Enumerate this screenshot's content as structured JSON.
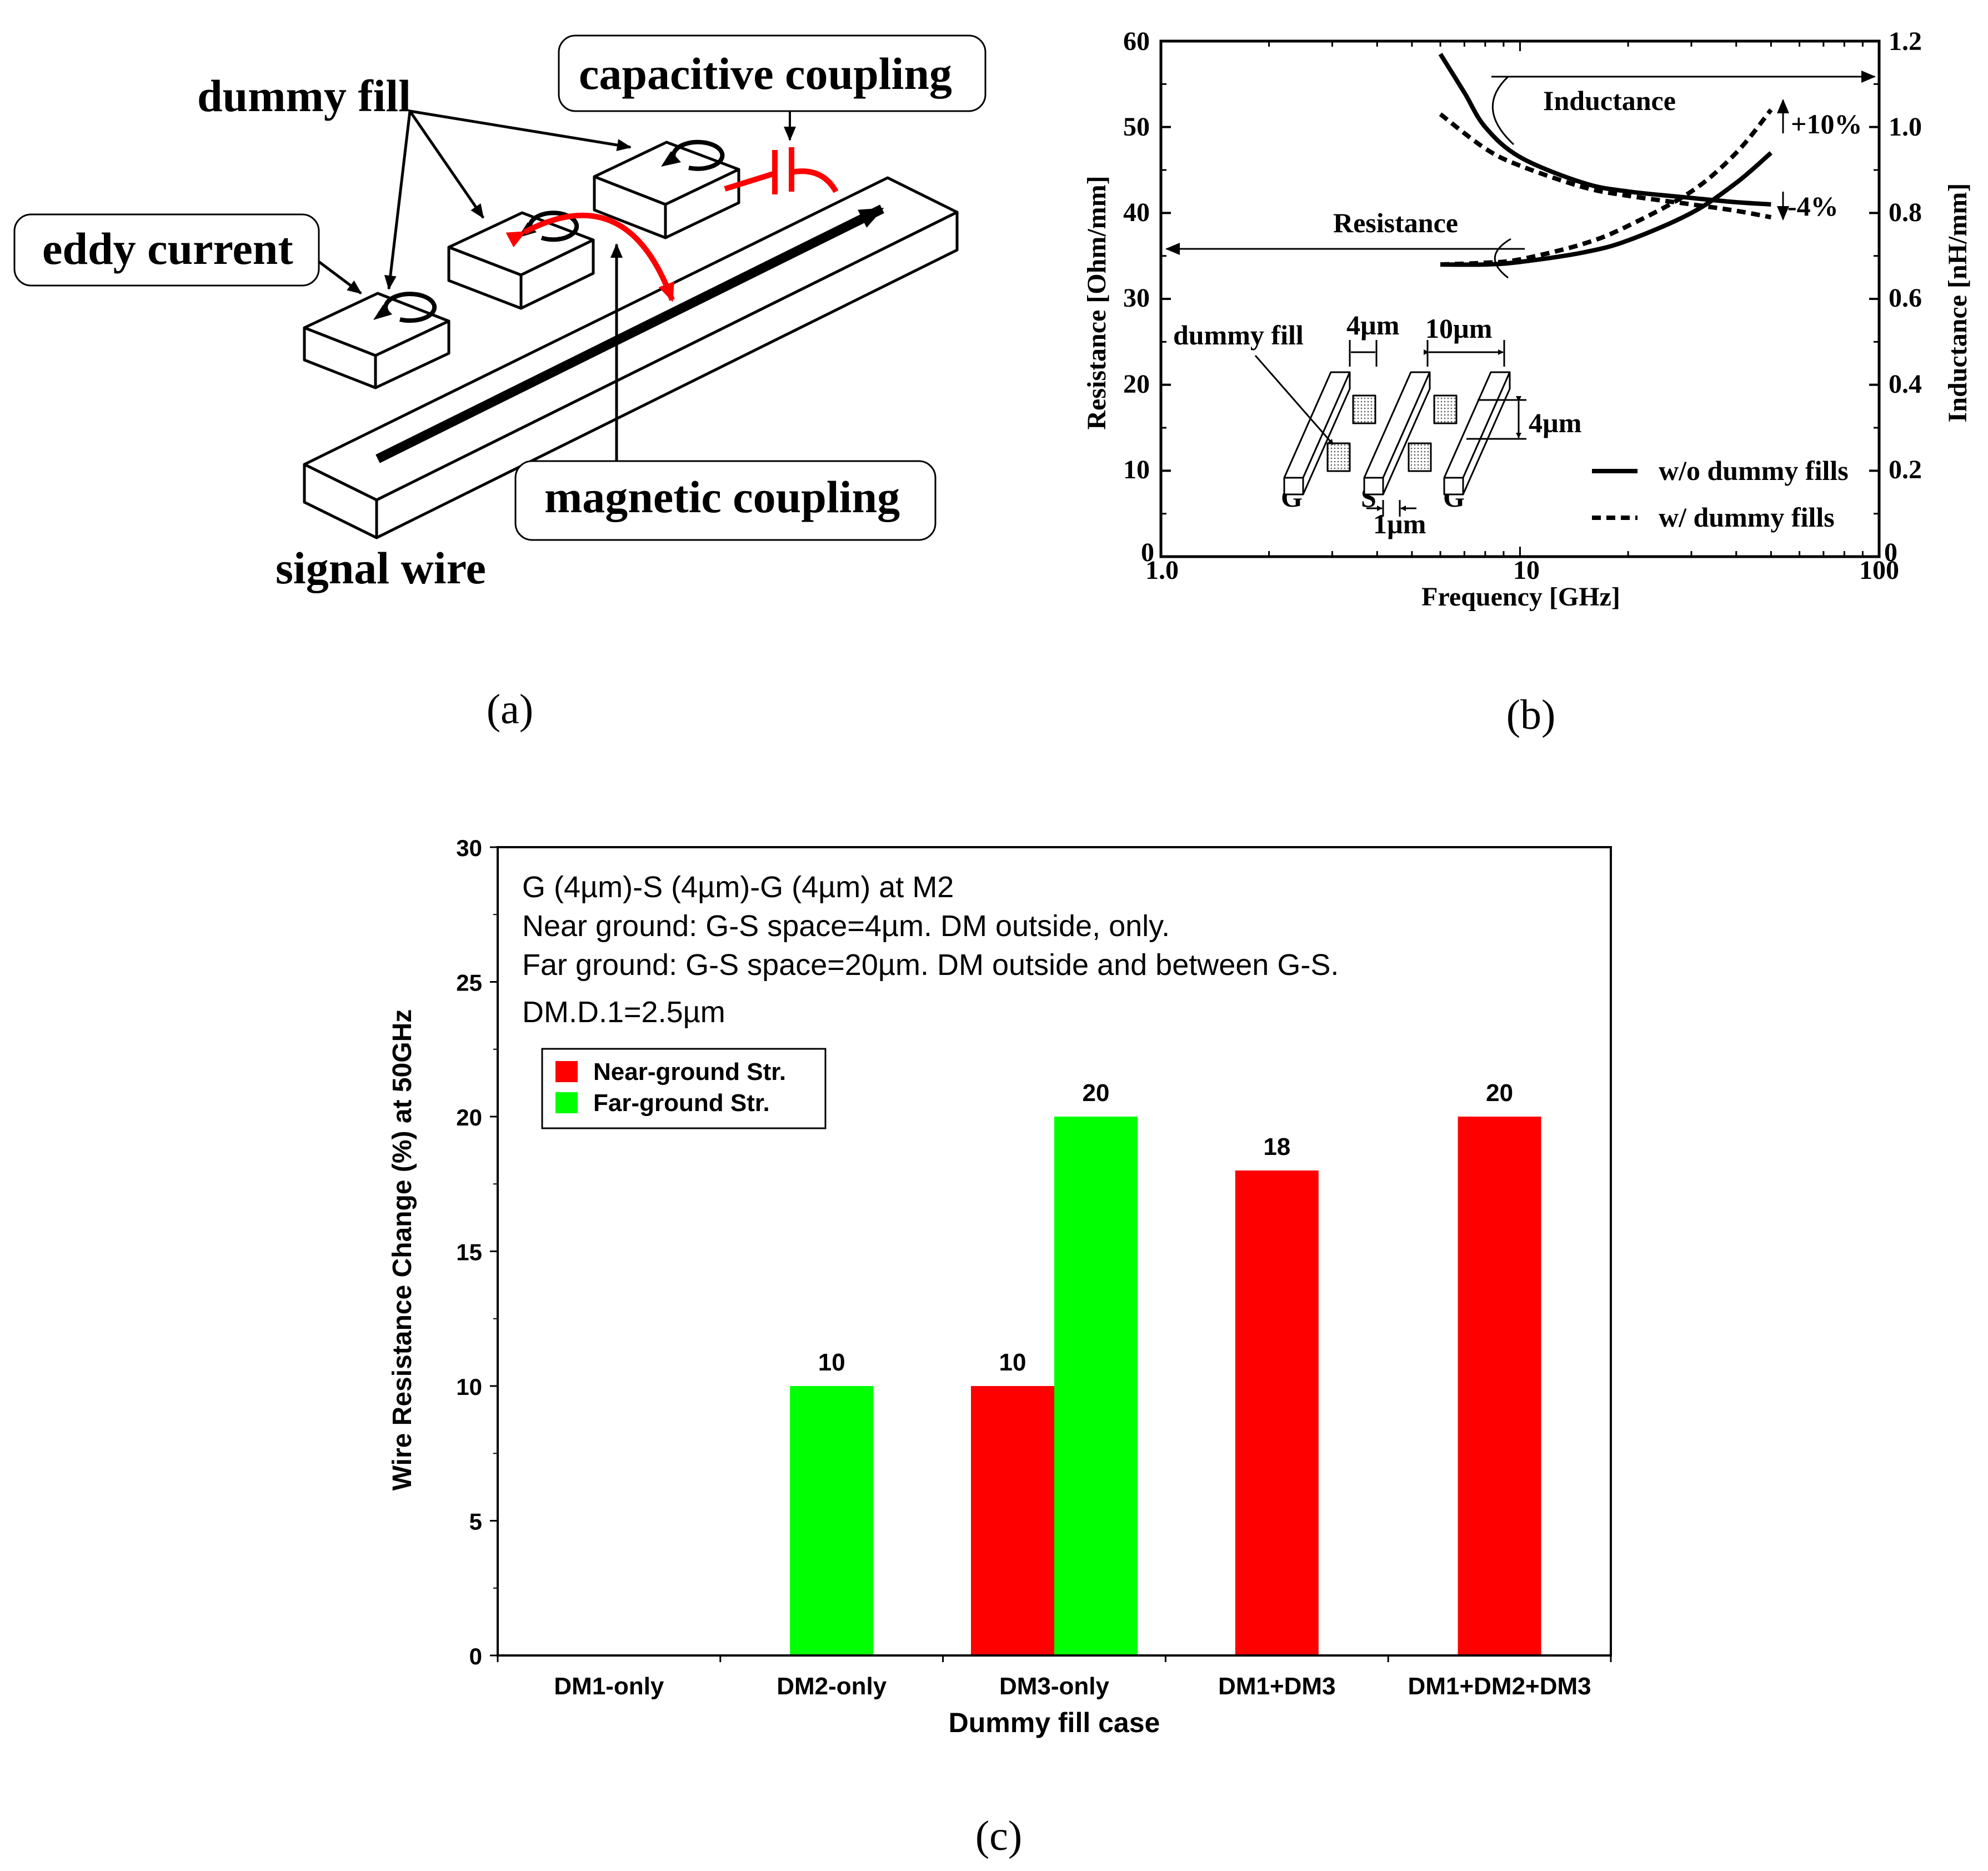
{
  "figure_a": {
    "caption": "(a)",
    "labels": {
      "dummy_fill": "dummy fill",
      "capacitive_coupling": "capacitive coupling",
      "eddy_current": "eddy current",
      "magnetic_coupling": "magnetic coupling",
      "signal_wire": "signal wire"
    }
  },
  "figure_b": {
    "caption": "(b)",
    "xlabel": "Frequency [GHz]",
    "ylabel_left": "Resistance [Ohm/mm]",
    "ylabel_right": "Inductance [nH/mm]",
    "x_ticks": [
      "1.0",
      "10",
      "100"
    ],
    "y_ticks_left": [
      "0",
      "10",
      "20",
      "30",
      "40",
      "50",
      "60"
    ],
    "y_ticks_right": [
      "0",
      "0.2",
      "0.4",
      "0.6",
      "0.8",
      "1.0",
      "1.2"
    ],
    "annotations": {
      "inductance": "Inductance",
      "resistance": "Resistance",
      "plus10": "+10%",
      "minus4": "-4%",
      "dummy_fill": "dummy fill",
      "dim_4um_a": "4µm",
      "dim_10um": "10µm",
      "dim_4um_b": "4µm",
      "dim_1um": "1µm",
      "g_left": "G",
      "s": "S",
      "g_right": "G"
    },
    "legend": [
      "w/o dummy fills",
      "w/ dummy fills"
    ]
  },
  "chart_data": [
    {
      "type": "line",
      "title": "",
      "xlabel": "Frequency [GHz]",
      "ylabel": "Resistance [Ohm/mm] / Inductance [nH/mm]",
      "x_scale": "log",
      "xlim": [
        1,
        100
      ],
      "ylim_left": [
        0,
        60
      ],
      "ylim_right": [
        0,
        1.2
      ],
      "series": [
        {
          "name": "Resistance w/o dummy fills",
          "axis": "left",
          "x": [
            6,
            8,
            10,
            15,
            20,
            30,
            40,
            50
          ],
          "y": [
            34,
            34,
            34.3,
            35.4,
            36.8,
            40,
            43.5,
            47
          ]
        },
        {
          "name": "Resistance w/ dummy fills",
          "axis": "left",
          "x": [
            6,
            8,
            10,
            15,
            20,
            30,
            40,
            50
          ],
          "y": [
            34,
            34.2,
            34.6,
            36.4,
            38.5,
            42.5,
            47,
            52
          ]
        },
        {
          "name": "Inductance w/o dummy fills",
          "axis": "right",
          "x": [
            6,
            7,
            8,
            10,
            15,
            20,
            30,
            40,
            50
          ],
          "y": [
            1.17,
            1.08,
            1.0,
            0.93,
            0.87,
            0.85,
            0.835,
            0.825,
            0.82
          ]
        },
        {
          "name": "Inductance w/ dummy fills",
          "axis": "right",
          "x": [
            6,
            8,
            10,
            15,
            20,
            30,
            40,
            50
          ],
          "y": [
            1.03,
            0.95,
            0.91,
            0.86,
            0.84,
            0.82,
            0.805,
            0.79
          ]
        }
      ]
    },
    {
      "type": "bar",
      "title": "",
      "xlabel": "Dummy fill case",
      "ylabel": "Wire Resistance Change (%) at 50GHz",
      "ylim": [
        0,
        30
      ],
      "y_ticks": [
        "0",
        "5",
        "10",
        "15",
        "20",
        "25",
        "30"
      ],
      "categories": [
        "DM1-only",
        "DM2-only",
        "DM3-only",
        "DM1+DM3",
        "DM1+DM2+DM3"
      ],
      "series": [
        {
          "name": "Near-ground Str.",
          "color": "#ff0000",
          "values": [
            null,
            null,
            10,
            18,
            20
          ]
        },
        {
          "name": "Far-ground Str.",
          "color": "#00ff00",
          "values": [
            null,
            10,
            20,
            null,
            null
          ]
        }
      ],
      "data_labels": [
        "10",
        "10",
        "20",
        "18",
        "20"
      ],
      "annotations": [
        "G (4µm)-S (4µm)-G (4µm) at M2",
        "Near ground: G-S space=4µm. DM outside, only.",
        "Far ground: G-S space=20µm. DM outside and between G-S.",
        "DM.D.1=2.5µm"
      ],
      "caption": "(c)"
    }
  ]
}
